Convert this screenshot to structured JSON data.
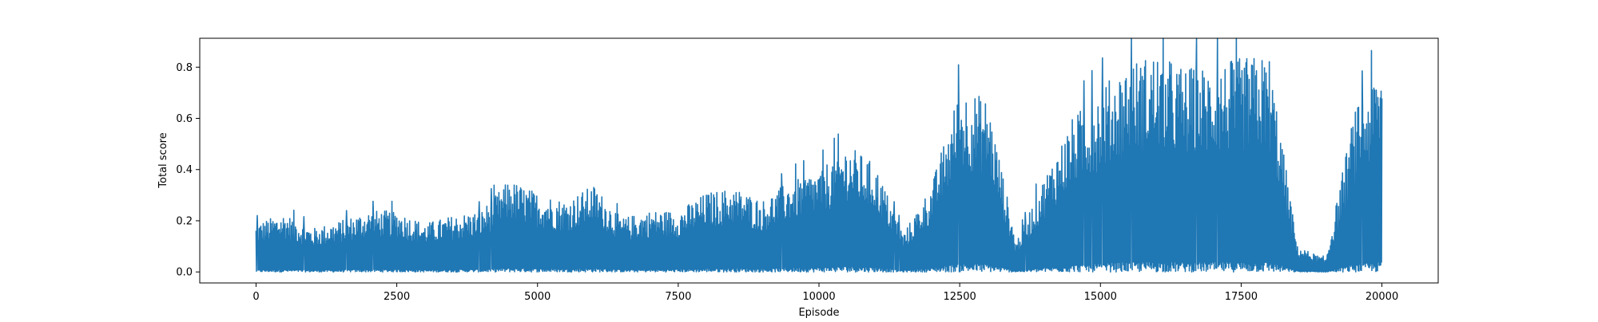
{
  "chart_data": {
    "type": "line",
    "title": "",
    "xlabel": "Episode",
    "ylabel": "Total score",
    "xlim": [
      -1000,
      21000
    ],
    "ylim": [
      -0.043,
      0.913
    ],
    "x_ticks": [
      0,
      2500,
      5000,
      7500,
      10000,
      12500,
      15000,
      17500,
      20000
    ],
    "y_ticks": [
      0.0,
      0.2,
      0.4,
      0.6,
      0.8
    ],
    "x_tick_labels": [
      "0",
      "2500",
      "5000",
      "7500",
      "10000",
      "12500",
      "15000",
      "17500",
      "20000"
    ],
    "y_tick_labels": [
      "0.0",
      "0.2",
      "0.4",
      "0.6",
      "0.8"
    ],
    "grid": false,
    "legend": "none",
    "series": [
      {
        "color": "#1f77b4",
        "x": [
          0,
          500,
          1000,
          1500,
          2000,
          2500,
          3000,
          3500,
          4000,
          4500,
          5000,
          5500,
          6000,
          6500,
          7000,
          7500,
          8000,
          8500,
          9000,
          9500,
          10000,
          10500,
          11000,
          11500,
          12000,
          12500,
          13000,
          13500,
          14000,
          14500,
          15000,
          15500,
          16000,
          16500,
          17000,
          17500,
          18000,
          18500,
          19000,
          19500,
          20000
        ],
        "envelope": [
          0.19,
          0.23,
          0.17,
          0.2,
          0.24,
          0.24,
          0.19,
          0.22,
          0.24,
          0.36,
          0.31,
          0.28,
          0.34,
          0.21,
          0.24,
          0.24,
          0.31,
          0.33,
          0.28,
          0.36,
          0.4,
          0.5,
          0.42,
          0.15,
          0.34,
          0.72,
          0.68,
          0.12,
          0.37,
          0.6,
          0.72,
          0.82,
          0.86,
          0.8,
          0.81,
          0.84,
          0.85,
          0.1,
          0.05,
          0.62,
          0.83
        ]
      }
    ]
  }
}
